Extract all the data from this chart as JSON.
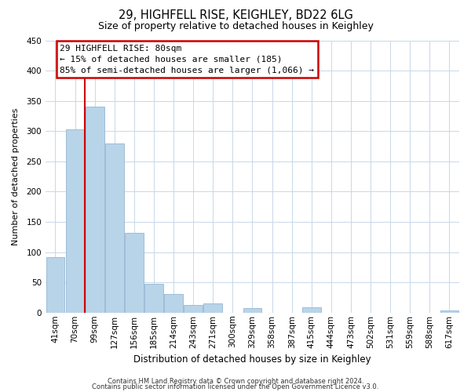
{
  "title": "29, HIGHFELL RISE, KEIGHLEY, BD22 6LG",
  "subtitle": "Size of property relative to detached houses in Keighley",
  "xlabel": "Distribution of detached houses by size in Keighley",
  "ylabel": "Number of detached properties",
  "bar_labels": [
    "41sqm",
    "70sqm",
    "99sqm",
    "127sqm",
    "156sqm",
    "185sqm",
    "214sqm",
    "243sqm",
    "271sqm",
    "300sqm",
    "329sqm",
    "358sqm",
    "387sqm",
    "415sqm",
    "444sqm",
    "473sqm",
    "502sqm",
    "531sqm",
    "559sqm",
    "588sqm",
    "617sqm"
  ],
  "bar_heights": [
    92,
    303,
    340,
    279,
    132,
    47,
    31,
    13,
    15,
    0,
    8,
    0,
    0,
    9,
    0,
    0,
    0,
    0,
    0,
    0,
    3
  ],
  "bar_color": "#b8d4e8",
  "bar_edge_color": "#a0bcd8",
  "ylim": [
    0,
    450
  ],
  "yticks": [
    0,
    50,
    100,
    150,
    200,
    250,
    300,
    350,
    400,
    450
  ],
  "annotation_line1": "29 HIGHFELL RISE: 80sqm",
  "annotation_line2": "← 15% of detached houses are smaller (185)",
  "annotation_line3": "85% of semi-detached houses are larger (1,066) →",
  "footer_line1": "Contains HM Land Registry data © Crown copyright and database right 2024.",
  "footer_line2": "Contains public sector information licensed under the Open Government Licence v3.0.",
  "property_line_color": "#cc0000",
  "property_line_x": 1.5,
  "grid_color": "#c8d8e8",
  "background_color": "#ffffff",
  "ann_box_edgecolor": "#cc0000",
  "title_fontsize": 10.5,
  "subtitle_fontsize": 9,
  "ylabel_fontsize": 8,
  "xlabel_fontsize": 8.5,
  "tick_fontsize": 7.5,
  "ann_fontsize": 8,
  "footer_fontsize": 6
}
